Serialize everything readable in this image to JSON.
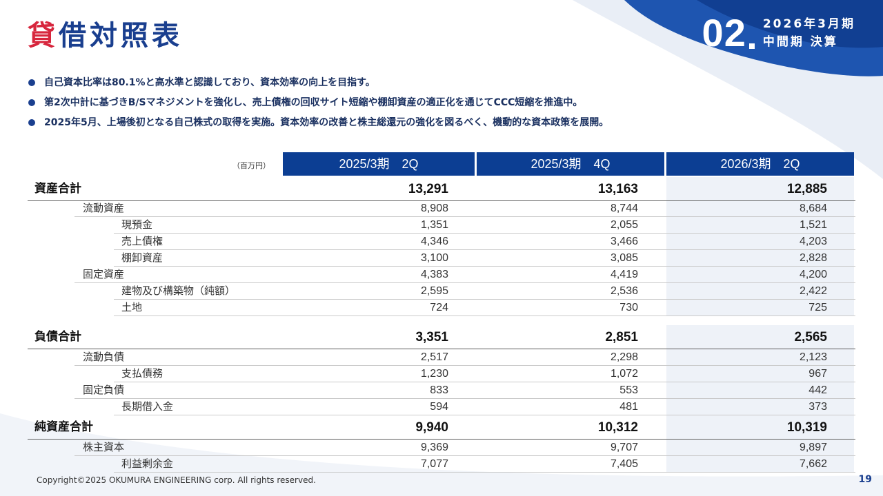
{
  "title": "貸借対照表",
  "period": {
    "number": "02",
    "line1": "2026年3月期",
    "line2": "中間期 決算"
  },
  "bullets": [
    "自己資本比率は80.1%と高水準と認識しており、資本効率の向上を目指す。",
    "第2次中計に基づきB/Sマネジメントを強化し、売上債権の回収サイト短縮や棚卸資産の適正化を通じてCCC短縮を推進中。",
    "2025年5月、上場後初となる自己株式の取得を実施。資本効率の改善と株主総還元の強化を図るべく、機動的な資本政策を展開。"
  ],
  "table": {
    "unit": "（百万円）",
    "columns": [
      "2025/3期　2Q",
      "2025/3期　4Q",
      "2026/3期　2Q"
    ],
    "rows": [
      {
        "label": "資産合計",
        "level": 0,
        "values": [
          "13,291",
          "13,163",
          "12,885"
        ]
      },
      {
        "label": "流動資産",
        "level": 1,
        "values": [
          "8,908",
          "8,744",
          "8,684"
        ]
      },
      {
        "label": "現預金",
        "level": 2,
        "values": [
          "1,351",
          "2,055",
          "1,521"
        ]
      },
      {
        "label": "売上債権",
        "level": 2,
        "values": [
          "4,346",
          "3,466",
          "4,203"
        ]
      },
      {
        "label": "棚卸資産",
        "level": 2,
        "values": [
          "3,100",
          "3,085",
          "2,828"
        ]
      },
      {
        "label": "固定資産",
        "level": 1,
        "values": [
          "4,383",
          "4,419",
          "4,200"
        ]
      },
      {
        "label": "建物及び構築物（純額）",
        "level": 2,
        "values": [
          "2,595",
          "2,536",
          "2,422"
        ]
      },
      {
        "label": "土地",
        "level": 2,
        "values": [
          "724",
          "730",
          "725"
        ]
      },
      {
        "label": "負債合計",
        "level": 0,
        "values": [
          "3,351",
          "2,851",
          "2,565"
        ]
      },
      {
        "label": "流動負債",
        "level": 1,
        "values": [
          "2,517",
          "2,298",
          "2,123"
        ]
      },
      {
        "label": "支払債務",
        "level": 2,
        "values": [
          "1,230",
          "1,072",
          "967"
        ]
      },
      {
        "label": "固定負債",
        "level": 1,
        "values": [
          "833",
          "553",
          "442"
        ]
      },
      {
        "label": "長期借入金",
        "level": 2,
        "values": [
          "594",
          "481",
          "373"
        ]
      },
      {
        "label": "純資産合計",
        "level": 0,
        "values": [
          "9,940",
          "10,312",
          "10,319"
        ]
      },
      {
        "label": "株主資本",
        "level": 1,
        "values": [
          "9,369",
          "9,707",
          "9,897"
        ]
      },
      {
        "label": "利益剰余金",
        "level": 2,
        "values": [
          "7,077",
          "7,405",
          "7,662"
        ]
      }
    ]
  },
  "footer": {
    "copyright": "Copyright©2025 OKUMURA ENGINEERING corp. All rights reserved.",
    "page": "19"
  },
  "colors": {
    "navy": "#0c3e93",
    "title_blue": "#1a3f8f",
    "accent_red": "#d7263d",
    "band_shade": "#eef2f8"
  }
}
